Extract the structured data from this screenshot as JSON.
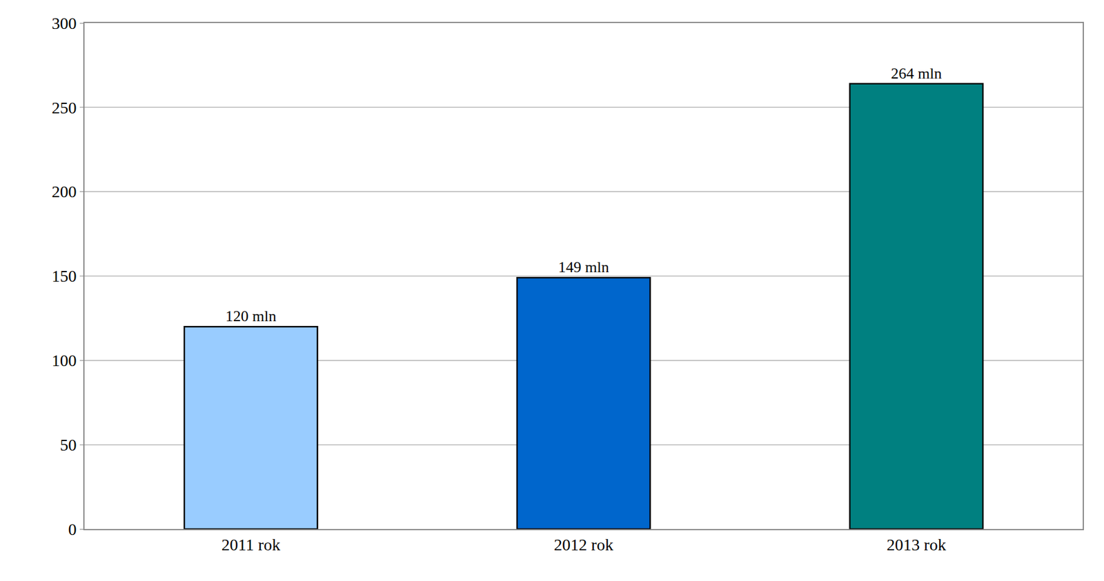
{
  "chart_data": {
    "type": "bar",
    "categories": [
      "2011 rok",
      "2012 rok",
      "2013 rok"
    ],
    "values": [
      120,
      149,
      264
    ],
    "value_labels": [
      "120 mln",
      "149 mln",
      "264 mln"
    ],
    "data_labels": true,
    "colors": [
      "#99ccff",
      "#0066cc",
      "#008080"
    ],
    "ylim": [
      0,
      300
    ],
    "yticks": [
      0,
      50,
      100,
      150,
      200,
      250,
      300
    ],
    "grid": true
  }
}
